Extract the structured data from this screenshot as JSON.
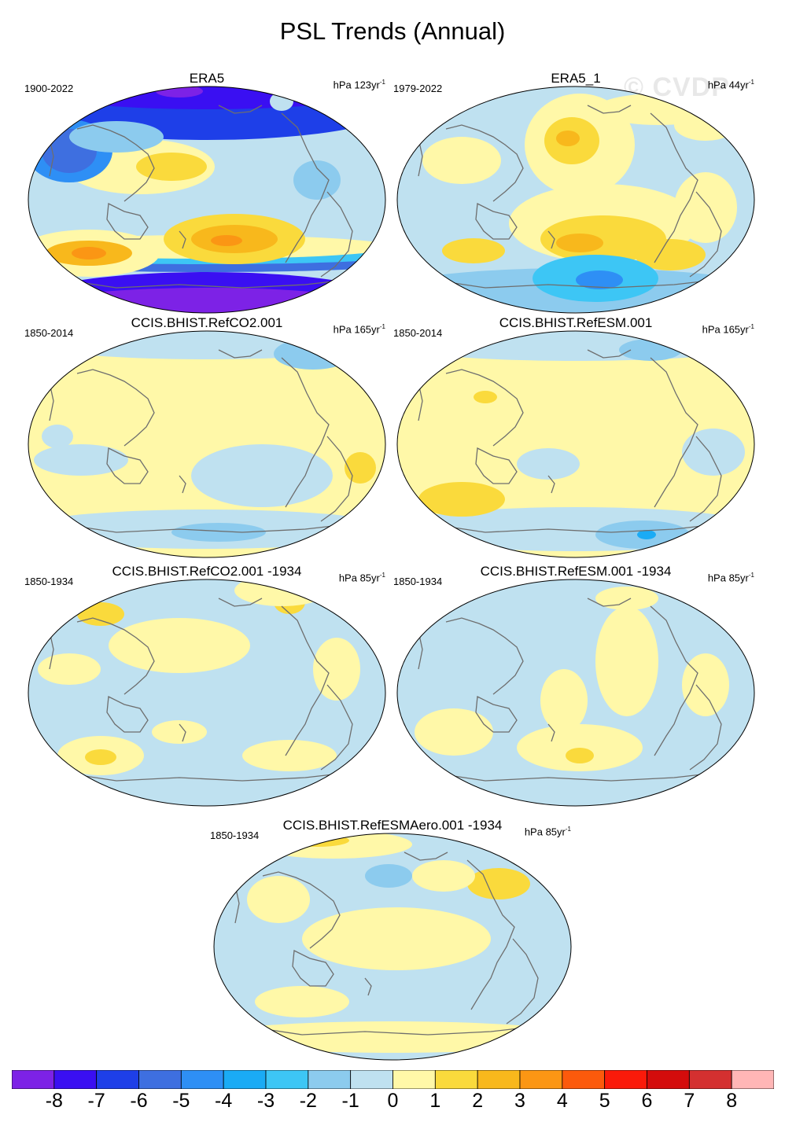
{
  "figure": {
    "title": "PSL Trends (Annual)",
    "watermark": "© CVDP"
  },
  "palette": [
    "#7d22e6",
    "#3a0ff2",
    "#1e3fe8",
    "#3e6fe0",
    "#2e8ff5",
    "#1aabf5",
    "#3dc6f5",
    "#8ccbee",
    "#bfe1f0",
    "#fff8a8",
    "#fada3c",
    "#f8b81c",
    "#fb9614",
    "#fc5a0c",
    "#fa1a0a",
    "#d40c0c",
    "#d43030",
    "#ffb6b6"
  ],
  "panels": [
    {
      "title": "ERA5",
      "period": "1900-2022",
      "units": "hPa 123yr",
      "units_exp": "-1",
      "pattern": "era5"
    },
    {
      "title": "ERA5_1",
      "period": "1979-2022",
      "units": "hPa 44yr",
      "units_exp": "-1",
      "pattern": "era5_1"
    },
    {
      "title": "CCIS.BHIST.RefCO2.001",
      "period": "1850-2014",
      "units": "hPa 165yr",
      "units_exp": "-1",
      "pattern": "co2_full"
    },
    {
      "title": "CCIS.BHIST.RefESM.001",
      "period": "1850-2014",
      "units": "hPa 165yr",
      "units_exp": "-1",
      "pattern": "esm_full"
    },
    {
      "title": "CCIS.BHIST.RefCO2.001 -1934",
      "period": "1850-1934",
      "units": "hPa 85yr",
      "units_exp": "-1",
      "pattern": "co2_1934"
    },
    {
      "title": "CCIS.BHIST.RefESM.001 -1934",
      "period": "1850-1934",
      "units": "hPa 85yr",
      "units_exp": "-1",
      "pattern": "esm_1934"
    },
    {
      "title": "CCIS.BHIST.RefESMAero.001 -1934",
      "period": "1850-1934",
      "units": "hPa 85yr",
      "units_exp": "-1",
      "pattern": "aero_1934"
    }
  ],
  "colorbar": {
    "labels": [
      "-8",
      "-7",
      "-6",
      "-5",
      "-4",
      "-3",
      "-2",
      "-1",
      "0",
      "1",
      "2",
      "3",
      "4",
      "5",
      "6",
      "7",
      "8"
    ]
  },
  "chart_data": {
    "type": "heatmap",
    "title": "PSL Trends (Annual)",
    "variable": "PSL (sea level pressure) linear trend",
    "units": "hPa per record length",
    "projection": "Robinson (Pacific-centered)",
    "contour_levels": [
      -8,
      -7,
      -6,
      -5,
      -4,
      -3,
      -2,
      -1,
      0,
      1,
      2,
      3,
      4,
      5,
      6,
      7,
      8
    ],
    "panels": [
      {
        "name": "ERA5",
        "period": "1900-2022",
        "range_shown": [
          -8,
          3
        ],
        "notes": "strong negative trends over polar regions (< -8 Antarctic), positive 1-3 in Southern Hemisphere midlatitudes and North Pacific"
      },
      {
        "name": "ERA5_1",
        "period": "1979-2022",
        "range_shown": [
          -4,
          3
        ],
        "notes": "positive 1-3 over North Pacific and South Pacific, negative -2 to -4 near Antarctica"
      },
      {
        "name": "CCIS.BHIST.RefCO2.001",
        "period": "1850-2014",
        "range_shown": [
          -2,
          2
        ],
        "notes": "mostly 0 to 1, weak negative band in Southern Ocean"
      },
      {
        "name": "CCIS.BHIST.RefESM.001",
        "period": "1850-2014",
        "range_shown": [
          -3,
          2
        ],
        "notes": "mostly 0 to 1, negative -1 to -3 near Antarctica"
      },
      {
        "name": "CCIS.BHIST.RefCO2.001 -1934",
        "period": "1850-1934",
        "range_shown": [
          -2,
          2
        ],
        "notes": "mixed -1 to 1"
      },
      {
        "name": "CCIS.BHIST.RefESM.001 -1934",
        "period": "1850-1934",
        "range_shown": [
          -1,
          2
        ],
        "notes": "mixed -1 to 1, patch of 2 in South Pacific"
      },
      {
        "name": "CCIS.BHIST.RefESMAero.001 -1934",
        "period": "1850-1934",
        "range_shown": [
          -2,
          2
        ],
        "notes": "mixed -1 to 1, positive 2 in North Pacific"
      }
    ]
  }
}
